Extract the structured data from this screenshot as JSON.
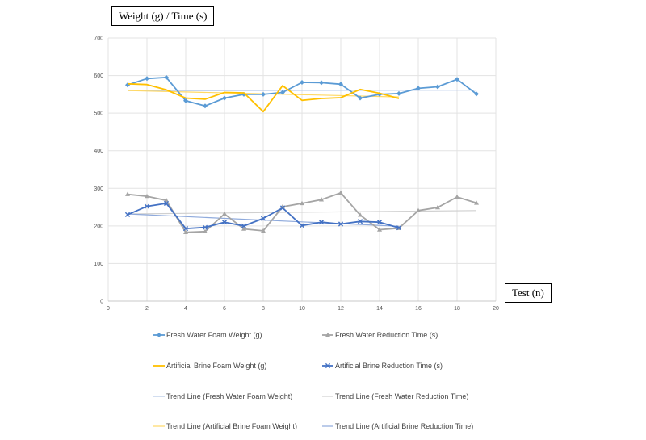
{
  "chart_data": {
    "type": "line",
    "ylabel": "Weight (g) / Time (s)",
    "xlabel": "Test (n)",
    "xlim": [
      0,
      20
    ],
    "ylim": [
      0,
      700
    ],
    "x_ticks": [
      0,
      2,
      4,
      6,
      8,
      10,
      12,
      14,
      16,
      18,
      20
    ],
    "y_ticks": [
      0,
      100,
      200,
      300,
      400,
      500,
      600,
      700
    ],
    "grid": true,
    "legend_position": "bottom",
    "series": [
      {
        "name": "Fresh Water Foam Weight (g)",
        "color": "#5b9bd5",
        "marker": "diamond",
        "x": [
          1,
          2,
          3,
          4,
          5,
          6,
          7,
          8,
          9,
          10,
          11,
          12,
          13,
          14,
          15,
          16,
          17,
          18,
          19
        ],
        "y": [
          575,
          592,
          595,
          533,
          519,
          540,
          550,
          550,
          555,
          582,
          581,
          577,
          540,
          550,
          552,
          566,
          570,
          590,
          551
        ]
      },
      {
        "name": "Fresh Water Reduction Time (s)",
        "color": "#a5a5a5",
        "marker": "triangle",
        "x": [
          1,
          2,
          3,
          4,
          5,
          6,
          7,
          8,
          9,
          10,
          11,
          12,
          13,
          14,
          15,
          16,
          17,
          18,
          19
        ],
        "y": [
          284,
          279,
          268,
          183,
          185,
          232,
          192,
          187,
          251,
          260,
          270,
          288,
          229,
          190,
          194,
          241,
          249,
          277,
          261
        ]
      },
      {
        "name": "Artificial Brine Foam Weight (g)",
        "color": "#ffc000",
        "marker": "none",
        "x": [
          1,
          2,
          3,
          4,
          5,
          6,
          7,
          8,
          9,
          10,
          11,
          12,
          13,
          14,
          15
        ],
        "y": [
          578,
          576,
          562,
          540,
          537,
          555,
          554,
          504,
          573,
          534,
          539,
          541,
          563,
          553,
          539
        ]
      },
      {
        "name": "Artificial Brine Reduction Time (s)",
        "color": "#4472c4",
        "marker": "cross",
        "x": [
          1,
          2,
          3,
          4,
          5,
          6,
          7,
          8,
          9,
          10,
          11,
          12,
          13,
          14,
          15
        ],
        "y": [
          230,
          252,
          260,
          193,
          196,
          210,
          200,
          220,
          248,
          201,
          210,
          205,
          212,
          210,
          195
        ]
      },
      {
        "name": "Trend Line (Fresh Water Foam Weight)",
        "color": "#b4c7e7",
        "trend": true,
        "x": [
          1,
          19
        ],
        "y": [
          560,
          561
        ]
      },
      {
        "name": "Trend Line (Fresh Water Reduction Time)",
        "color": "#d0d0d0",
        "trend": true,
        "x": [
          1,
          19
        ],
        "y": [
          232,
          241
        ]
      },
      {
        "name": "Trend Line (Artificial Brine Foam Weight)",
        "color": "#ffd966",
        "trend": true,
        "x": [
          1,
          15
        ],
        "y": [
          560,
          543
        ]
      },
      {
        "name": "Trend Line (Artificial Brine Reduction Time)",
        "color": "#8faadc",
        "trend": true,
        "x": [
          1,
          15
        ],
        "y": [
          232,
          199
        ]
      }
    ]
  }
}
